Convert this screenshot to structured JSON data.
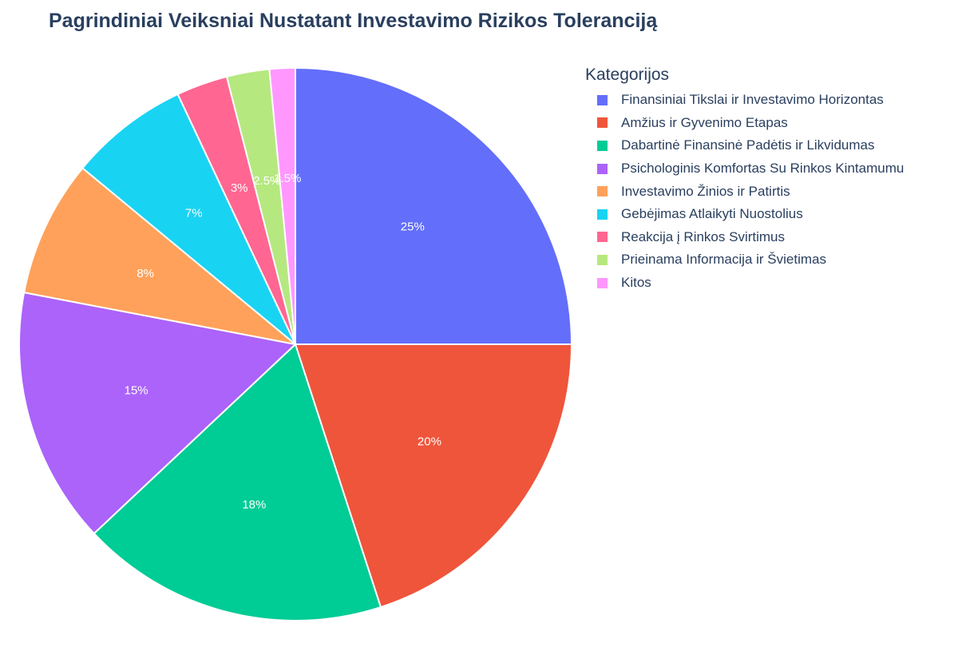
{
  "title": "Pagrindiniai Veiksniai Nustatant Investavimo Rizikos Toleranciją",
  "legend_title": "Kategorijos",
  "chart_data": {
    "type": "pie",
    "title": "Pagrindiniai Veiksniai Nustatant Investavimo Rizikos Toleranciją",
    "legend_title": "Kategorijos",
    "legend_position": "right",
    "slices": [
      {
        "label": "Finansiniai Tikslai ir Investavimo Horizontas",
        "value": 25,
        "text": "25%",
        "color": "#636efa"
      },
      {
        "label": "Amžius ir Gyvenimo Etapas",
        "value": 20,
        "text": "20%",
        "color": "#ef553b"
      },
      {
        "label": "Dabartinė Finansinė Padėtis ir Likvidumas",
        "value": 18,
        "text": "18%",
        "color": "#00cc96"
      },
      {
        "label": "Psichologinis Komfortas Su Rinkos Kintamumu",
        "value": 15,
        "text": "15%",
        "color": "#ab63fa"
      },
      {
        "label": "Investavimo Žinios ir Patirtis",
        "value": 8,
        "text": "8%",
        "color": "#ffa15a"
      },
      {
        "label": "Gebėjimas Atlaikyti Nuostolius",
        "value": 7,
        "text": "7%",
        "color": "#19d3f3"
      },
      {
        "label": "Reakcija į Rinkos Svirtimus",
        "value": 3,
        "text": "3%",
        "color": "#ff6692"
      },
      {
        "label": "Prieinama Informacija ir Švietimas",
        "value": 2.5,
        "text": "2.5%",
        "color": "#b6e880"
      },
      {
        "label": "Kitos",
        "value": 1.5,
        "text": "1.5%",
        "color": "#ff97ff"
      }
    ]
  }
}
